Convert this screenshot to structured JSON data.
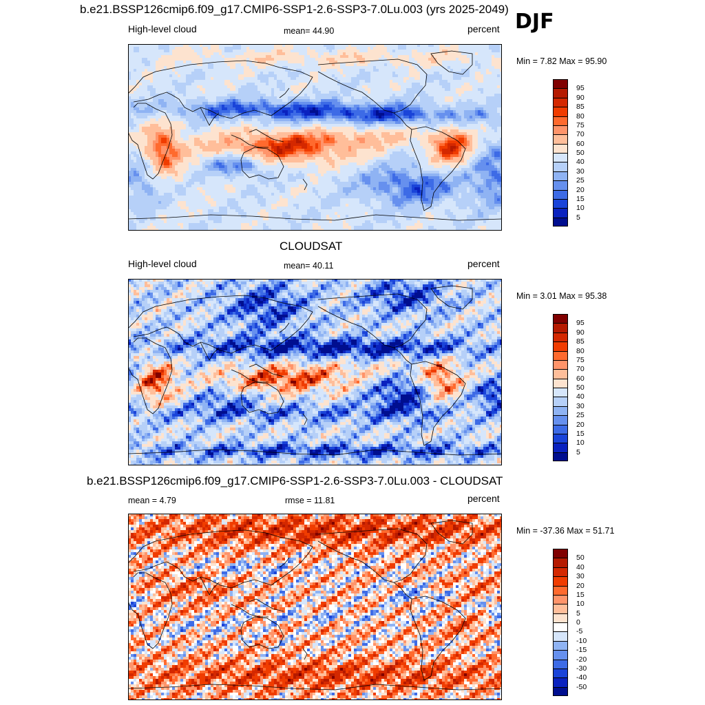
{
  "season": "DJF",
  "panels": [
    {
      "title": "b.e21.BSSP126cmip6.f09_g17.CMIP6-SSP1-2.6-SSP3-7.0Lu.003 (yrs 2025-2049)",
      "left_label": "High-level cloud",
      "center_label": "mean=  44.90",
      "units": "percent",
      "minmax": "Min =   7.82 Max =  95.90",
      "kind": "model",
      "colorbar": {
        "labels": [
          "95",
          "90",
          "85",
          "80",
          "75",
          "70",
          "60",
          "50",
          "40",
          "30",
          "25",
          "20",
          "15",
          "10",
          "5"
        ],
        "colors": [
          "#800000",
          "#b51a00",
          "#d42800",
          "#f03c00",
          "#ff6a2e",
          "#ff946a",
          "#ffbe9a",
          "#fde3cf",
          "#d6e6fb",
          "#b6d0f8",
          "#8fb3f3",
          "#6690ee",
          "#3d6be6",
          "#1a44d9",
          "#0a22bf",
          "#000e8f"
        ]
      }
    },
    {
      "title": "CLOUDSAT",
      "left_label": "High-level cloud",
      "center_label": "mean=  40.11",
      "units": "percent",
      "minmax": "Min =   3.01 Max =  95.38",
      "kind": "obs",
      "colorbar": {
        "labels": [
          "95",
          "90",
          "85",
          "80",
          "75",
          "70",
          "60",
          "50",
          "40",
          "30",
          "25",
          "20",
          "15",
          "10",
          "5"
        ],
        "colors": [
          "#800000",
          "#b51a00",
          "#d42800",
          "#f03c00",
          "#ff6a2e",
          "#ff946a",
          "#ffbe9a",
          "#fde3cf",
          "#d6e6fb",
          "#b6d0f8",
          "#8fb3f3",
          "#6690ee",
          "#3d6be6",
          "#1a44d9",
          "#0a22bf",
          "#000e8f"
        ]
      }
    },
    {
      "title": "b.e21.BSSP126cmip6.f09_g17.CMIP6-SSP1-2.6-SSP3-7.0Lu.003 - CLOUDSAT",
      "left_label": "mean =   4.79",
      "center_label": "rmse =  11.81",
      "units": "percent",
      "minmax": "Min = -37.36 Max =  51.71",
      "kind": "diff",
      "colorbar": {
        "labels": [
          "50",
          "40",
          "30",
          "20",
          "15",
          "10",
          "5",
          "0",
          "-5",
          "-10",
          "-15",
          "-20",
          "-30",
          "-40",
          "-50"
        ],
        "colors": [
          "#800000",
          "#b51a00",
          "#d42800",
          "#f03c00",
          "#ff6a2e",
          "#ff946a",
          "#ffbe9a",
          "#fde3cf",
          "#ffffff",
          "#d6e6fb",
          "#8fb3f3",
          "#6690ee",
          "#3d6be6",
          "#1a44d9",
          "#0a22bf",
          "#000e8f"
        ]
      }
    }
  ]
}
